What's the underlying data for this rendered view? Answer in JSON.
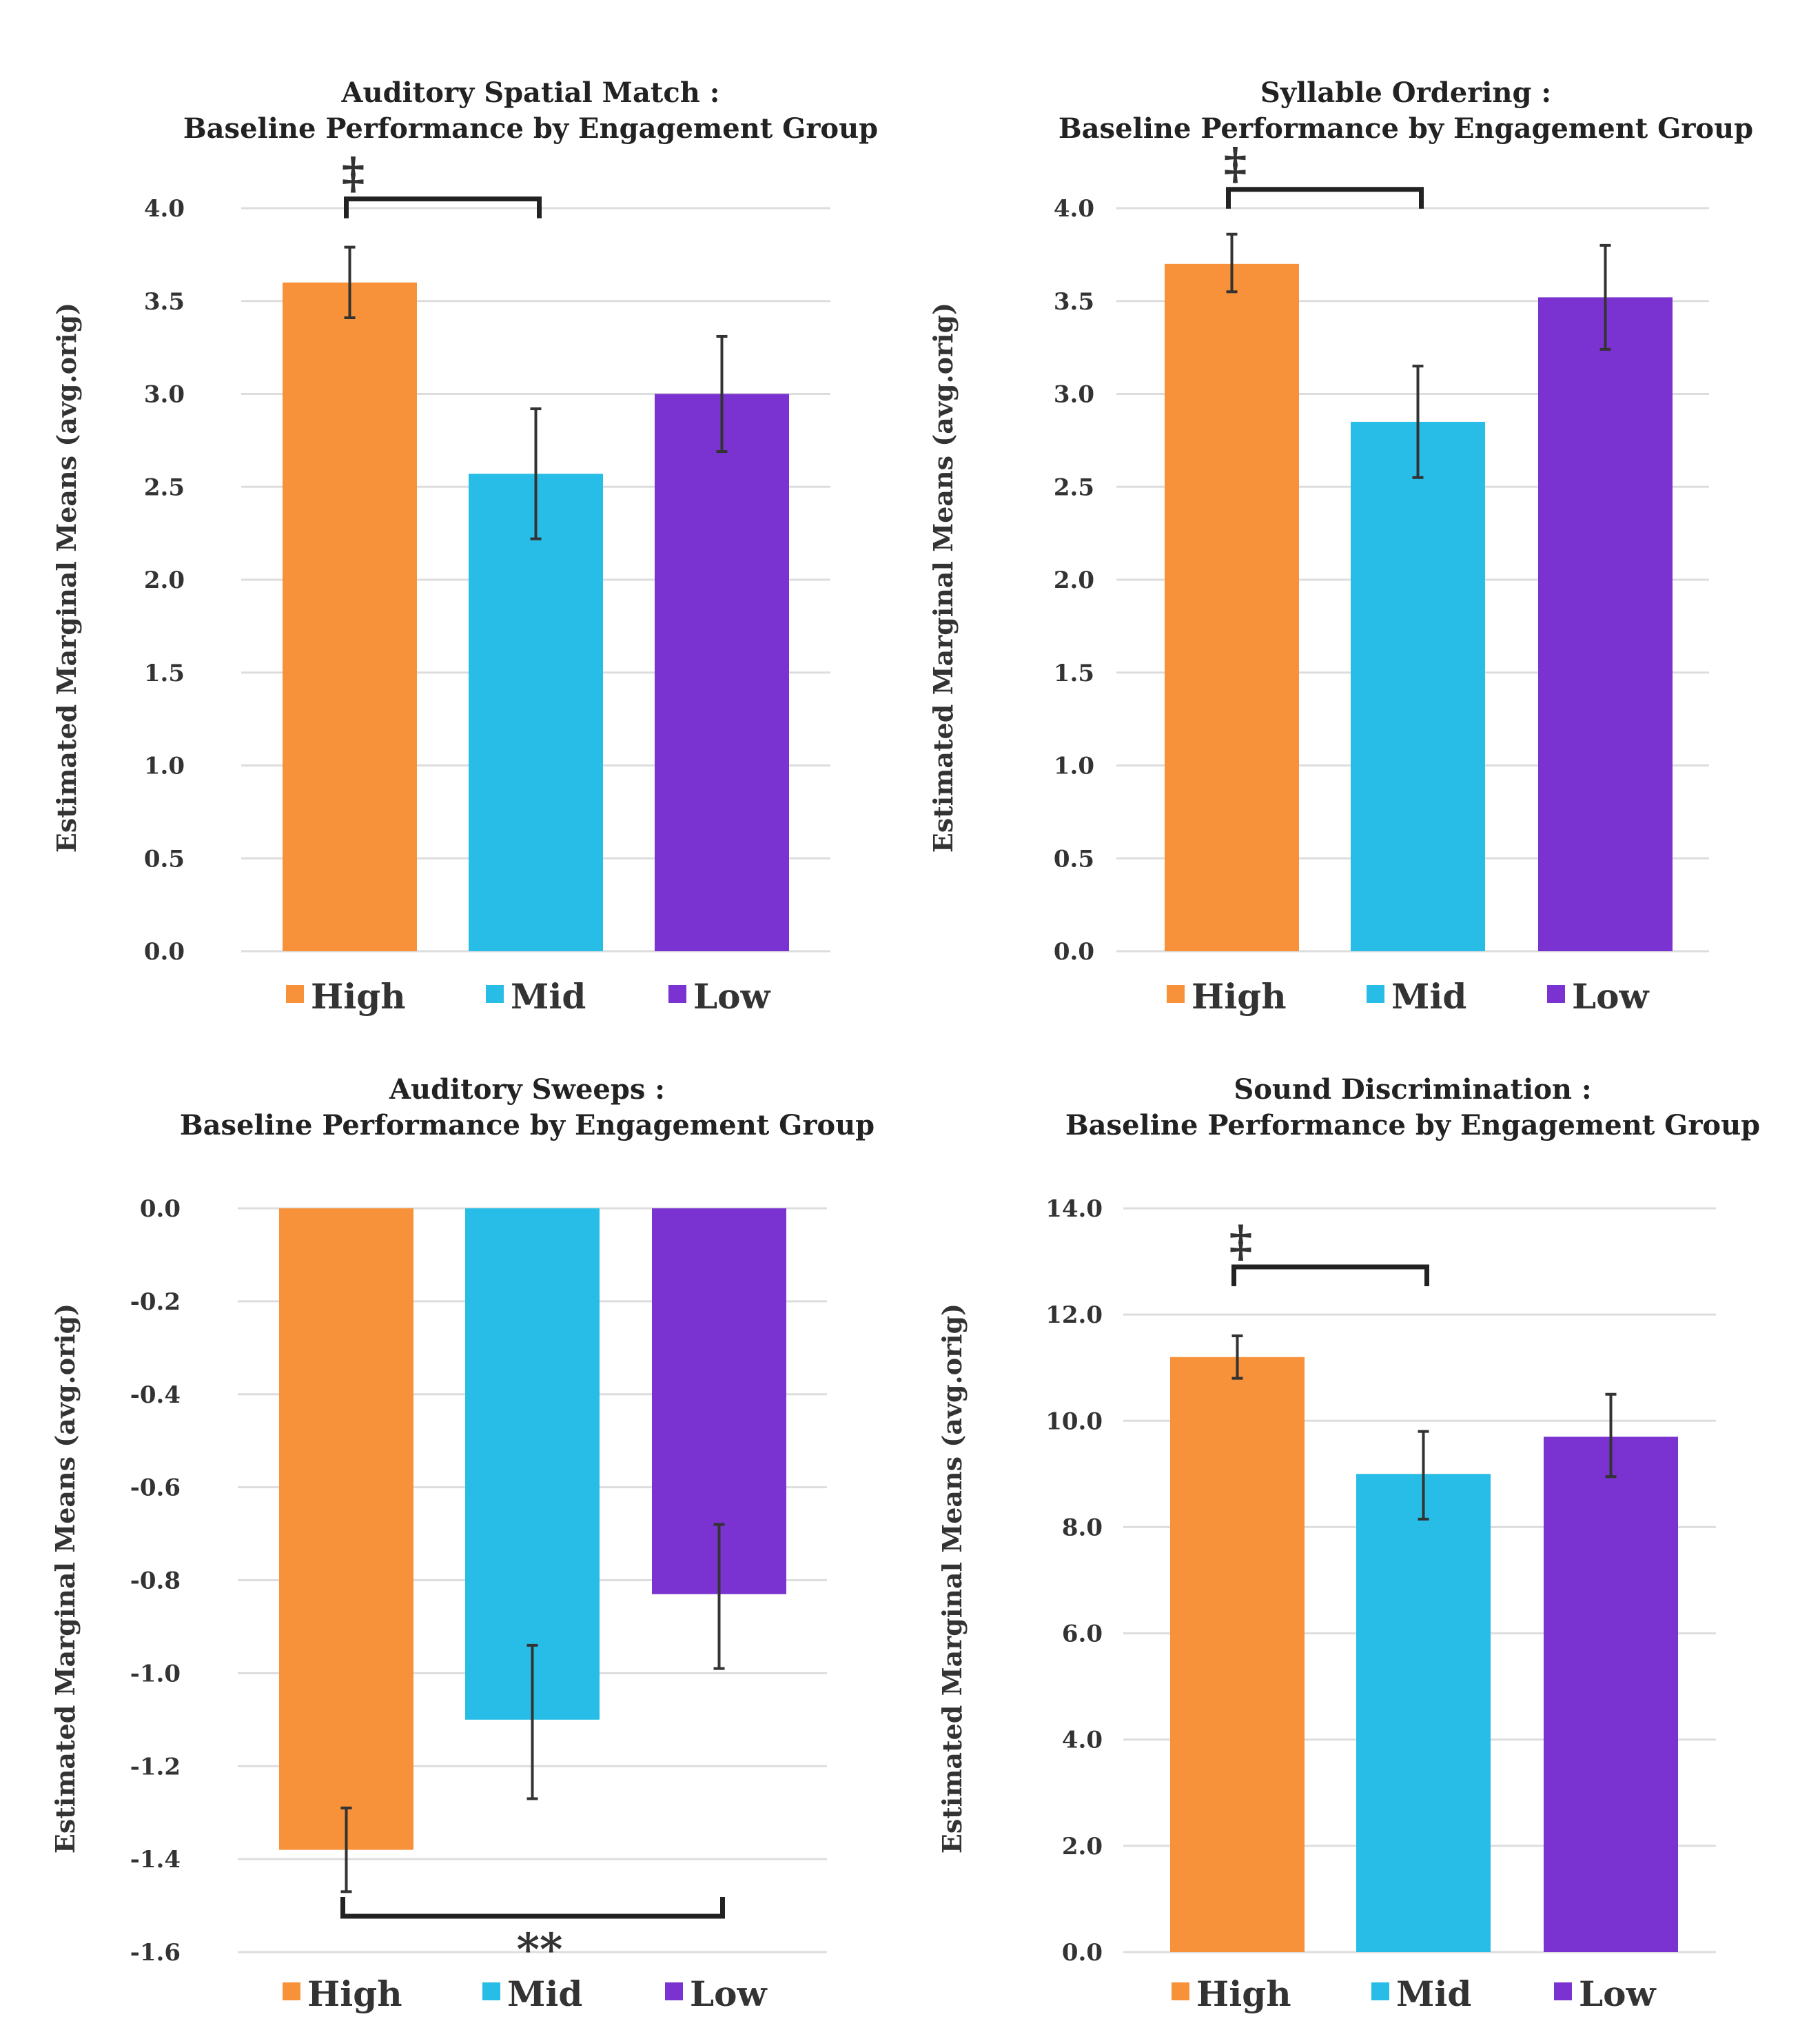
{
  "colors": {
    "High": "#f7923a",
    "Mid": "#28bde6",
    "Low": "#7a33d0"
  },
  "y_axis_label": "Estimated Marginal Means (avg.orig)",
  "chart_data": [
    {
      "type": "bar",
      "title": [
        "Auditory Spatial Match :",
        "Baseline Performance by Engagement Group"
      ],
      "ylabel": "Estimated Marginal Means (avg.orig)",
      "categories": [
        "High",
        "Mid",
        "Low"
      ],
      "values": [
        3.6,
        2.57,
        3.0
      ],
      "err_low": [
        3.41,
        2.22,
        2.69
      ],
      "err_high": [
        3.79,
        2.92,
        3.31
      ],
      "ylim": [
        0,
        4
      ],
      "ticks": [
        "4.0",
        "3.5",
        "3.0",
        "2.5",
        "2.0",
        "1.5",
        "1.0",
        "0.5",
        "0.0"
      ],
      "tick_values": [
        4,
        3.5,
        3,
        2.5,
        2,
        1.5,
        1,
        0.5,
        0
      ],
      "legend": [
        "High",
        "Mid",
        "Low"
      ],
      "significance": {
        "symbol": "‡",
        "between": [
          "High",
          "Mid"
        ],
        "position": "top"
      }
    },
    {
      "type": "bar",
      "title": [
        "Syllable Ordering :",
        "Baseline Performance by Engagement Group"
      ],
      "ylabel": "Estimated Marginal Means (avg.orig)",
      "categories": [
        "High",
        "Mid",
        "Low"
      ],
      "values": [
        3.7,
        2.85,
        3.52
      ],
      "err_low": [
        3.55,
        2.55,
        3.24
      ],
      "err_high": [
        3.86,
        3.15,
        3.8
      ],
      "ylim": [
        0,
        4
      ],
      "ticks": [
        "4.0",
        "3.5",
        "3.0",
        "2.5",
        "2.0",
        "1.5",
        "1.0",
        "0.5",
        "0.0"
      ],
      "tick_values": [
        4,
        3.5,
        3,
        2.5,
        2,
        1.5,
        1,
        0.5,
        0
      ],
      "legend": [
        "High",
        "Mid",
        "Low"
      ],
      "significance": {
        "symbol": "‡",
        "between": [
          "High",
          "Mid"
        ],
        "position": "top"
      }
    },
    {
      "type": "bar",
      "title": [
        "Auditory Sweeps :",
        "Baseline Performance by Engagement Group"
      ],
      "ylabel": "Estimated Marginal Means (avg.orig)",
      "categories": [
        "High",
        "Mid",
        "Low"
      ],
      "values": [
        -1.38,
        -1.1,
        -0.83
      ],
      "err_low": [
        -1.47,
        -1.27,
        -0.99
      ],
      "err_high": [
        -1.29,
        -0.94,
        -0.68
      ],
      "ylim": [
        -1.6,
        0
      ],
      "ticks": [
        "0.0",
        "-0.2",
        "-0.4",
        "-0.6",
        "-0.8",
        "-1.0",
        "-1.2",
        "-1.4",
        "-1.6"
      ],
      "tick_values": [
        0,
        -0.2,
        -0.4,
        -0.6,
        -0.8,
        -1.0,
        -1.2,
        -1.4,
        -1.6
      ],
      "legend": [
        "High",
        "Mid",
        "Low"
      ],
      "significance": {
        "symbol": "**",
        "between": [
          "High",
          "Low"
        ],
        "position": "bottom"
      }
    },
    {
      "type": "bar",
      "title": [
        "Sound Discrimination :",
        "Baseline Performance by Engagement Group"
      ],
      "ylabel": "Estimated Marginal Means (avg.orig)",
      "categories": [
        "High",
        "Mid",
        "Low"
      ],
      "values": [
        11.2,
        9.0,
        9.7
      ],
      "err_low": [
        10.8,
        8.15,
        8.95
      ],
      "err_high": [
        11.6,
        9.8,
        10.5
      ],
      "ylim": [
        0,
        14
      ],
      "ticks": [
        "14.0",
        "12.0",
        "10.0",
        "8.0",
        "6.0",
        "4.0",
        "2.0",
        "0.0"
      ],
      "tick_values": [
        14,
        12,
        10,
        8,
        6,
        4,
        2,
        0
      ],
      "legend": [
        "High",
        "Mid",
        "Low"
      ],
      "significance": {
        "symbol": "‡",
        "between": [
          "High",
          "Mid"
        ],
        "position": "top"
      }
    }
  ]
}
